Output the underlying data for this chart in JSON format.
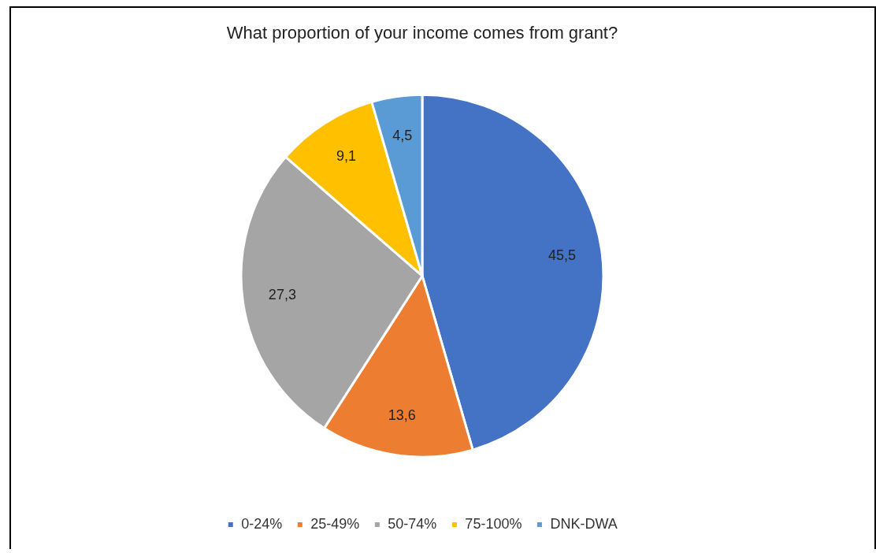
{
  "chart_data": {
    "type": "pie",
    "title": "What proportion of your income comes from grant?",
    "categories": [
      "0-24%",
      "25-49%",
      "50-74%",
      "75-100%",
      "DNK-DWA"
    ],
    "values": [
      45.5,
      13.6,
      27.3,
      9.1,
      4.5
    ],
    "value_labels": [
      "45,5",
      "13,6",
      "27,3",
      "9,1",
      "4,5"
    ],
    "colors": [
      "#4472c4",
      "#ed7d31",
      "#a5a5a5",
      "#ffc000",
      "#5b9bd5"
    ],
    "legend": "bottom"
  }
}
